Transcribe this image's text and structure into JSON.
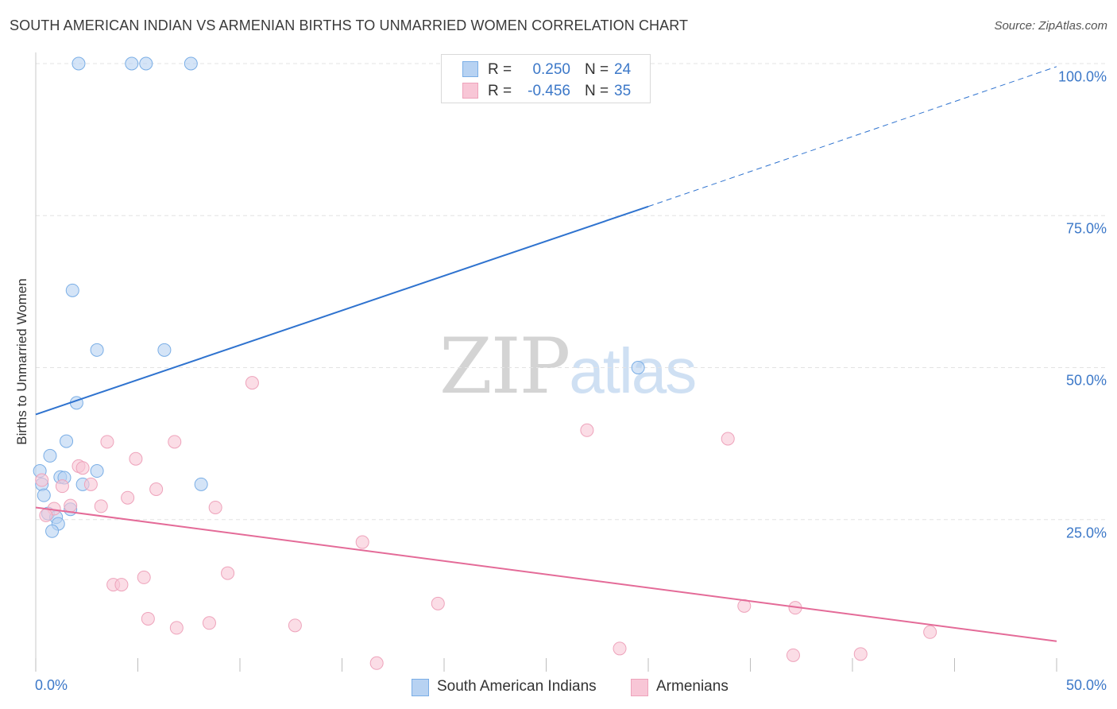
{
  "title": "SOUTH AMERICAN INDIAN VS ARMENIAN BIRTHS TO UNMARRIED WOMEN CORRELATION CHART",
  "source": "Source: ZipAtlas.com",
  "watermark": {
    "zip": "ZIP",
    "atlas": "atlas"
  },
  "colors": {
    "blue_fill": "#b7d2f2",
    "blue_stroke": "#7aaee6",
    "blue_line": "#2f73cf",
    "pink_fill": "#f8c6d6",
    "pink_stroke": "#eea3bb",
    "pink_line": "#e46b98",
    "tick_text": "#3c78c8",
    "grid": "#e3e3e3"
  },
  "stats": [
    {
      "r_label": "R =",
      "r_value": "0.250",
      "n_label": "N =",
      "n_value": "24",
      "series": "blue"
    },
    {
      "r_label": "R =",
      "r_value": "-0.456",
      "n_label": "N =",
      "n_value": "35",
      "series": "pink"
    }
  ],
  "legend": [
    {
      "label": "South American Indians",
      "series": "blue"
    },
    {
      "label": "Armenians",
      "series": "pink"
    }
  ],
  "chart_data": {
    "type": "scatter",
    "title": "SOUTH AMERICAN INDIAN VS ARMENIAN BIRTHS TO UNMARRIED WOMEN CORRELATION CHART",
    "xlabel": "",
    "ylabel": "Births to Unmarried Women",
    "xlim": [
      0,
      50
    ],
    "ylim": [
      0,
      100
    ],
    "x_tick_labels": [
      "0.0%",
      "50.0%"
    ],
    "y_ticks": [
      25,
      50,
      75,
      100
    ],
    "y_tick_labels": [
      "25.0%",
      "50.0%",
      "75.0%",
      "100.0%"
    ],
    "grid": true,
    "series": [
      {
        "name": "South American Indians",
        "color": "#b7d2f2",
        "r": 0.25,
        "n": 24,
        "points": [
          [
            2.1,
            100
          ],
          [
            4.7,
            100
          ],
          [
            5.4,
            100
          ],
          [
            7.6,
            100
          ],
          [
            1.8,
            62.7
          ],
          [
            3.0,
            52.9
          ],
          [
            6.3,
            52.9
          ],
          [
            29.5,
            50.0
          ],
          [
            2.0,
            44.2
          ],
          [
            1.5,
            37.9
          ],
          [
            0.7,
            35.5
          ],
          [
            3.0,
            33.0
          ],
          [
            1.2,
            32.0
          ],
          [
            1.4,
            31.9
          ],
          [
            2.3,
            30.8
          ],
          [
            8.1,
            30.8
          ],
          [
            0.2,
            33.0
          ],
          [
            0.3,
            30.8
          ],
          [
            0.4,
            29.0
          ],
          [
            0.6,
            26.0
          ],
          [
            1.7,
            26.7
          ],
          [
            1.0,
            25.4
          ],
          [
            1.1,
            24.3
          ],
          [
            0.8,
            23.1
          ]
        ],
        "trend": {
          "x0": 0,
          "y0": 42.3,
          "x1": 30,
          "y1": 76.5,
          "dash_x1": 50,
          "dash_y1": 99.5
        }
      },
      {
        "name": "Armenians",
        "color": "#f8c6d6",
        "r": -0.456,
        "n": 35,
        "points": [
          [
            10.6,
            47.5
          ],
          [
            27.0,
            39.7
          ],
          [
            33.9,
            38.3
          ],
          [
            3.5,
            37.8
          ],
          [
            6.8,
            37.8
          ],
          [
            4.9,
            35.0
          ],
          [
            2.1,
            33.8
          ],
          [
            2.3,
            33.5
          ],
          [
            2.7,
            30.8
          ],
          [
            1.3,
            30.5
          ],
          [
            5.9,
            30.0
          ],
          [
            0.3,
            31.5
          ],
          [
            4.5,
            28.6
          ],
          [
            3.2,
            27.2
          ],
          [
            1.7,
            27.3
          ],
          [
            8.8,
            27.0
          ],
          [
            0.9,
            26.8
          ],
          [
            0.5,
            25.7
          ],
          [
            16.0,
            21.3
          ],
          [
            9.4,
            16.2
          ],
          [
            5.3,
            15.5
          ],
          [
            3.8,
            14.3
          ],
          [
            4.2,
            14.3
          ],
          [
            19.7,
            11.2
          ],
          [
            34.7,
            10.8
          ],
          [
            37.2,
            10.5
          ],
          [
            5.5,
            8.7
          ],
          [
            6.9,
            7.2
          ],
          [
            8.5,
            8.0
          ],
          [
            12.7,
            7.6
          ],
          [
            43.8,
            6.5
          ],
          [
            28.6,
            3.8
          ],
          [
            37.1,
            2.7
          ],
          [
            40.4,
            2.9
          ],
          [
            16.7,
            1.4
          ]
        ],
        "trend": {
          "x0": 0,
          "y0": 27.0,
          "x1": 50,
          "y1": 5.0
        }
      }
    ]
  }
}
